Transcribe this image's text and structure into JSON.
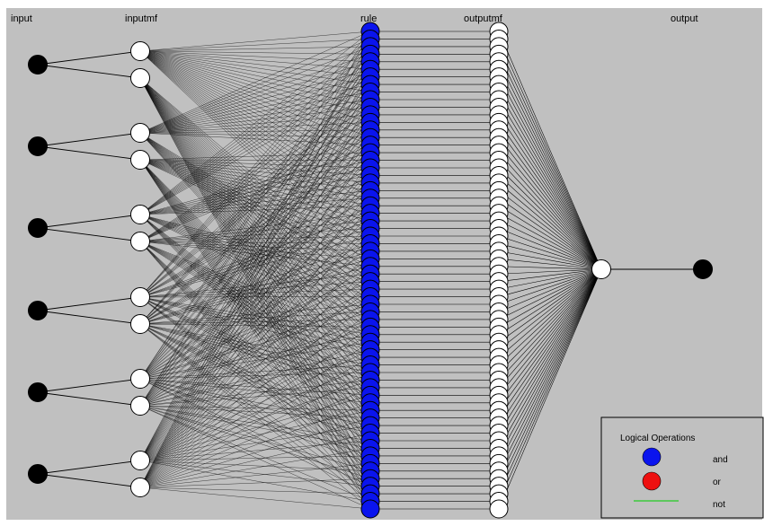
{
  "layers": {
    "input": "input",
    "inputmf": "inputmf",
    "rule": "rule",
    "outputmf": "outputmf",
    "output": "output"
  },
  "network": {
    "inputs": 6,
    "mfs_per_input": 2,
    "rules": 64,
    "output_mfs": 64,
    "outputs": 1
  },
  "legend": {
    "title": "Logical Operations",
    "items": [
      {
        "label": "and",
        "color": "#0a14ee",
        "kind": "node"
      },
      {
        "label": "or",
        "color": "#ee1010",
        "kind": "node"
      },
      {
        "label": "not",
        "color": "#22cc22",
        "kind": "line"
      }
    ]
  },
  "colors": {
    "background": "#c0c0c0",
    "input_node": "#000000",
    "mf_node": "#ffffff",
    "rule_node": "#0a14ee",
    "line": "#000000"
  }
}
